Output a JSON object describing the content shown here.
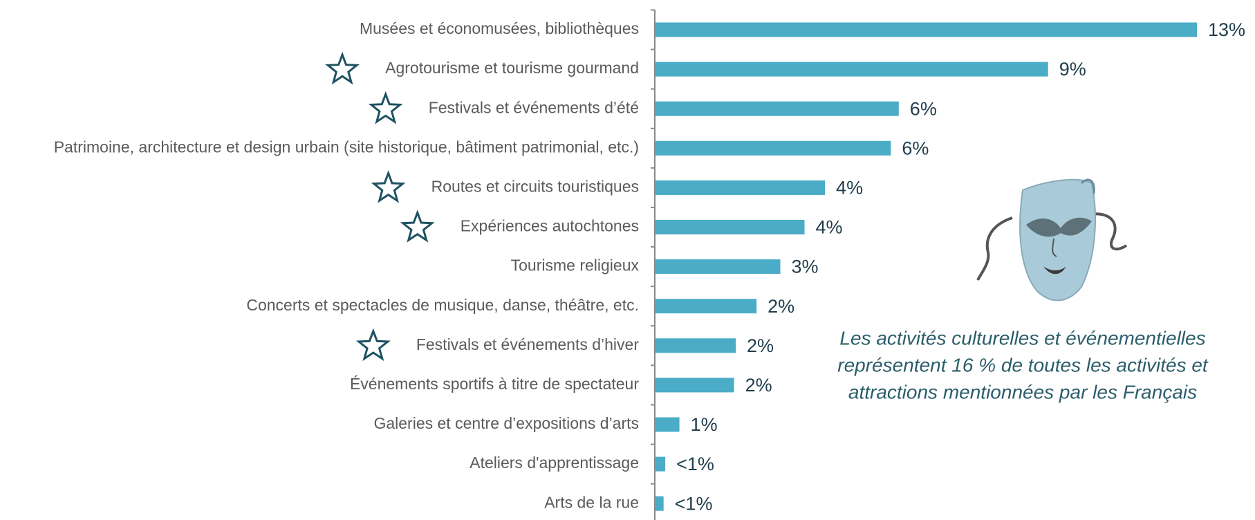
{
  "chart_data": {
    "type": "bar",
    "orientation": "horizontal",
    "categories": [
      "Musées et économusées, bibliothèques",
      "Agrotourisme et tourisme gourmand",
      "Festivals et événements d’été",
      "Patrimoine, architecture et design urbain (site historique, bâtiment patrimonial, etc.)",
      "Routes et circuits touristiques",
      "Expériences autochtones",
      "Tourisme religieux",
      "Concerts et spectacles de musique, danse, théâtre, etc.",
      "Festivals et événements d’hiver",
      "Événements sportifs à titre de spectateur",
      "Galeries et centre d’expositions d’arts",
      "Ateliers d'apprentissage",
      "Arts de la rue"
    ],
    "values": [
      13,
      9.43,
      5.85,
      5.66,
      4.08,
      3.59,
      3.01,
      2.44,
      1.94,
      1.9,
      0.59,
      0.25,
      0.21
    ],
    "value_labels": [
      "13%",
      "9%",
      "6%",
      "6%",
      "4%",
      "4%",
      "3%",
      "2%",
      "2%",
      "2%",
      "1%",
      "<1%",
      "<1%"
    ],
    "starred": [
      false,
      true,
      true,
      false,
      true,
      true,
      false,
      false,
      true,
      false,
      false,
      false,
      false
    ],
    "color": "#4aacc6",
    "annotation": [
      "Les activités culturelles et événementielles",
      "représentent 16 % de toutes les activités et",
      "attractions mentionnées par les Français"
    ]
  }
}
